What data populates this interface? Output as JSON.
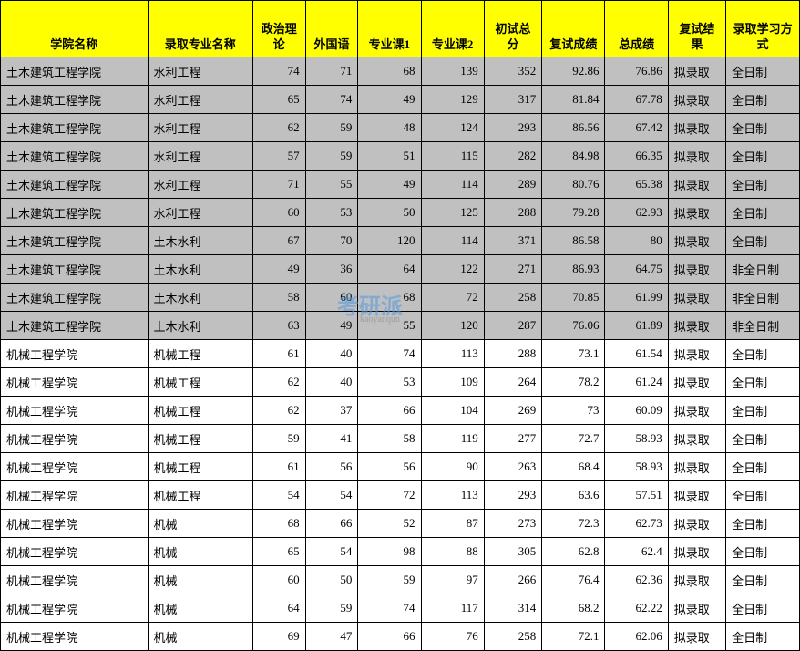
{
  "table": {
    "headers": [
      "学院名称",
      "录取专业名称",
      "政治理论",
      "外国语",
      "专业课1",
      "专业课2",
      "初试总分",
      "复试成绩",
      "总成绩",
      "复试结果",
      "录取学习方式"
    ],
    "col_align": [
      "left",
      "left",
      "right",
      "right",
      "right",
      "right",
      "right",
      "right",
      "right",
      "left",
      "left"
    ],
    "rows": [
      {
        "grey": true,
        "cells": [
          "土木建筑工程学院",
          "水利工程",
          "74",
          "71",
          "68",
          "139",
          "352",
          "92.86",
          "76.86",
          "拟录取",
          "全日制"
        ]
      },
      {
        "grey": true,
        "cells": [
          "土木建筑工程学院",
          "水利工程",
          "65",
          "74",
          "49",
          "129",
          "317",
          "81.84",
          "67.78",
          "拟录取",
          "全日制"
        ]
      },
      {
        "grey": true,
        "cells": [
          "土木建筑工程学院",
          "水利工程",
          "62",
          "59",
          "48",
          "124",
          "293",
          "86.56",
          "67.42",
          "拟录取",
          "全日制"
        ]
      },
      {
        "grey": true,
        "cells": [
          "土木建筑工程学院",
          "水利工程",
          "57",
          "59",
          "51",
          "115",
          "282",
          "84.98",
          "66.35",
          "拟录取",
          "全日制"
        ]
      },
      {
        "grey": true,
        "cells": [
          "土木建筑工程学院",
          "水利工程",
          "71",
          "55",
          "49",
          "114",
          "289",
          "80.76",
          "65.38",
          "拟录取",
          "全日制"
        ]
      },
      {
        "grey": true,
        "cells": [
          "土木建筑工程学院",
          "水利工程",
          "60",
          "53",
          "50",
          "125",
          "288",
          "79.28",
          "62.93",
          "拟录取",
          "全日制"
        ]
      },
      {
        "grey": true,
        "cells": [
          "土木建筑工程学院",
          "土木水利",
          "67",
          "70",
          "120",
          "114",
          "371",
          "86.58",
          "80",
          "拟录取",
          "全日制"
        ]
      },
      {
        "grey": true,
        "cells": [
          "土木建筑工程学院",
          "土木水利",
          "49",
          "36",
          "64",
          "122",
          "271",
          "86.93",
          "64.75",
          "拟录取",
          "非全日制"
        ]
      },
      {
        "grey": true,
        "cells": [
          "土木建筑工程学院",
          "土木水利",
          "58",
          "60",
          "68",
          "72",
          "258",
          "70.85",
          "61.99",
          "拟录取",
          "非全日制"
        ]
      },
      {
        "grey": true,
        "cells": [
          "土木建筑工程学院",
          "土木水利",
          "63",
          "49",
          "55",
          "120",
          "287",
          "76.06",
          "61.89",
          "拟录取",
          "非全日制"
        ]
      },
      {
        "grey": false,
        "cells": [
          "机械工程学院",
          "机械工程",
          "61",
          "40",
          "74",
          "113",
          "288",
          "73.1",
          "61.54",
          "拟录取",
          "全日制"
        ]
      },
      {
        "grey": false,
        "cells": [
          "机械工程学院",
          "机械工程",
          "62",
          "40",
          "53",
          "109",
          "264",
          "78.2",
          "61.24",
          "拟录取",
          "全日制"
        ]
      },
      {
        "grey": false,
        "cells": [
          "机械工程学院",
          "机械工程",
          "62",
          "37",
          "66",
          "104",
          "269",
          "73",
          "60.09",
          "拟录取",
          "全日制"
        ]
      },
      {
        "grey": false,
        "cells": [
          "机械工程学院",
          "机械工程",
          "59",
          "41",
          "58",
          "119",
          "277",
          "72.7",
          "58.93",
          "拟录取",
          "全日制"
        ]
      },
      {
        "grey": false,
        "cells": [
          "机械工程学院",
          "机械工程",
          "61",
          "56",
          "56",
          "90",
          "263",
          "68.4",
          "58.93",
          "拟录取",
          "全日制"
        ]
      },
      {
        "grey": false,
        "cells": [
          "机械工程学院",
          "机械工程",
          "54",
          "54",
          "72",
          "113",
          "293",
          "63.6",
          "57.51",
          "拟录取",
          "全日制"
        ]
      },
      {
        "grey": false,
        "cells": [
          "机械工程学院",
          "机械",
          "68",
          "66",
          "52",
          "87",
          "273",
          "72.3",
          "62.73",
          "拟录取",
          "全日制"
        ]
      },
      {
        "grey": false,
        "cells": [
          "机械工程学院",
          "机械",
          "65",
          "54",
          "98",
          "88",
          "305",
          "62.8",
          "62.4",
          "拟录取",
          "全日制"
        ]
      },
      {
        "grey": false,
        "cells": [
          "机械工程学院",
          "机械",
          "60",
          "50",
          "59",
          "97",
          "266",
          "76.4",
          "62.36",
          "拟录取",
          "全日制"
        ]
      },
      {
        "grey": false,
        "cells": [
          "机械工程学院",
          "机械",
          "64",
          "59",
          "74",
          "117",
          "314",
          "68.2",
          "62.22",
          "拟录取",
          "全日制"
        ]
      },
      {
        "grey": false,
        "cells": [
          "机械工程学院",
          "机械",
          "69",
          "47",
          "66",
          "76",
          "258",
          "72.1",
          "62.06",
          "拟录取",
          "全日制"
        ]
      }
    ]
  },
  "watermark": {
    "main": "考研派",
    "sub": "kaoyanqun"
  }
}
